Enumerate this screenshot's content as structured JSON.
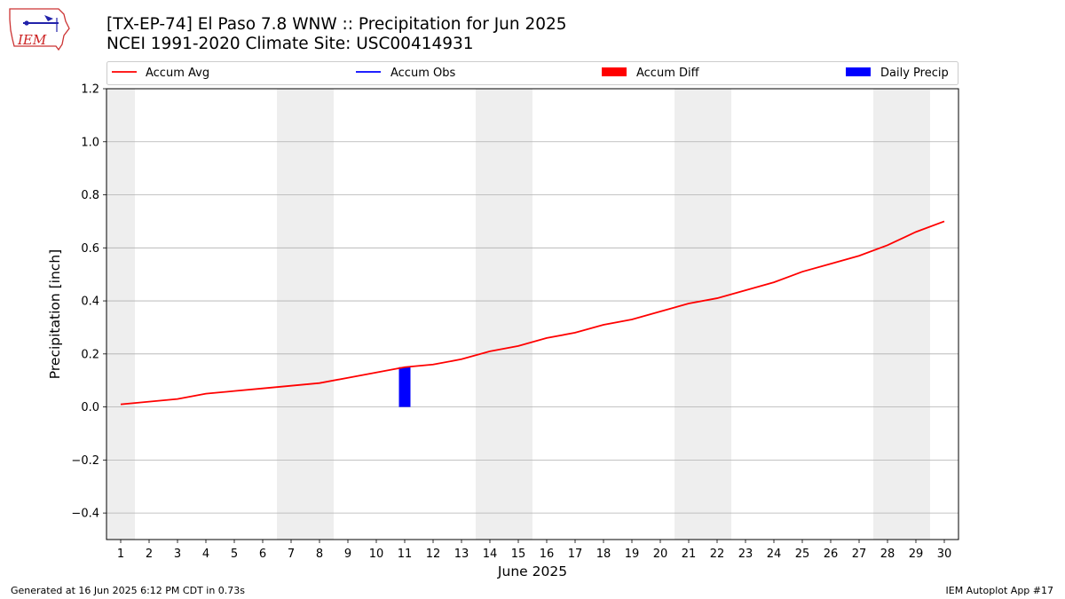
{
  "header": {
    "title_line1": "[TX-EP-74] El Paso 7.8 WNW :: Precipitation for Jun 2025",
    "title_line2": "NCEI 1991-2020 Climate Site: USC00414931",
    "logo_text": "IEM"
  },
  "footer": {
    "generated": "Generated at 16 Jun 2025 6:12 PM CDT in 0.73s",
    "app": "IEM Autoplot App #17"
  },
  "colors": {
    "accum_avg": "#ff0000",
    "accum_obs": "#0000ff",
    "accum_diff": "#ff0000",
    "daily_precip": "#0000ff",
    "weekend_band": "#eeeeee",
    "grid": "#b0b0b0"
  },
  "chart_data": {
    "type": "line",
    "xlabel": "June 2025",
    "ylabel": "Precipitation [inch]",
    "xlim": [
      0.5,
      30.5
    ],
    "ylim": [
      -0.5,
      1.2
    ],
    "x_ticks": [
      1,
      2,
      3,
      4,
      5,
      6,
      7,
      8,
      9,
      10,
      11,
      12,
      13,
      14,
      15,
      16,
      17,
      18,
      19,
      20,
      21,
      22,
      23,
      24,
      25,
      26,
      27,
      28,
      29,
      30
    ],
    "y_ticks": [
      -0.4,
      -0.2,
      0.0,
      0.2,
      0.4,
      0.6,
      0.8,
      1.0,
      1.2
    ],
    "y_tick_labels": [
      "−0.4",
      "−0.2",
      "0.0",
      "0.2",
      "0.4",
      "0.6",
      "0.8",
      "1.0",
      "1.2"
    ],
    "grid": "horizontal",
    "legend": {
      "placement": "top",
      "entries": [
        "Accum Avg",
        "Accum Obs",
        "Accum Diff",
        "Daily Precip"
      ]
    },
    "weekend_days": [
      1,
      7,
      8,
      14,
      15,
      21,
      22,
      28,
      29
    ],
    "series": [
      {
        "name": "Accum Avg",
        "kind": "line",
        "x": [
          1,
          2,
          3,
          4,
          5,
          6,
          7,
          8,
          9,
          10,
          11,
          12,
          13,
          14,
          15,
          16,
          17,
          18,
          19,
          20,
          21,
          22,
          23,
          24,
          25,
          26,
          27,
          28,
          29,
          30
        ],
        "values": [
          0.01,
          0.02,
          0.03,
          0.05,
          0.06,
          0.07,
          0.08,
          0.09,
          0.11,
          0.13,
          0.15,
          0.16,
          0.18,
          0.21,
          0.23,
          0.26,
          0.28,
          0.31,
          0.33,
          0.36,
          0.39,
          0.41,
          0.44,
          0.47,
          0.51,
          0.54,
          0.57,
          0.61,
          0.66,
          0.7
        ]
      },
      {
        "name": "Daily Precip",
        "kind": "bar",
        "x": [
          11
        ],
        "values": [
          0.15
        ]
      }
    ]
  }
}
